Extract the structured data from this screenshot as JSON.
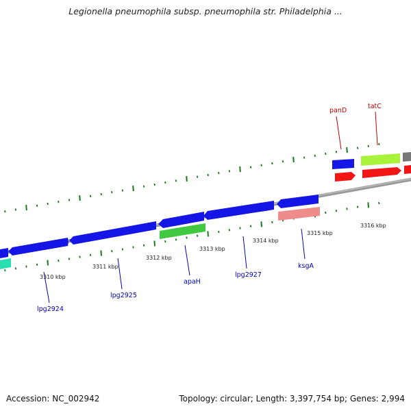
{
  "header": {
    "title": "Legionella pneumophila subsp. pneumophila str. Philadelphia ..."
  },
  "footer": {
    "accession": "Accession: NC_002942",
    "summary": "Topology: circular; Length: 3,397,754 bp; Genes: 2,994"
  },
  "colors": {
    "backbone": "#888888",
    "tick": "#1a7a1a",
    "blue": "#1010e8",
    "green": "#3ccc3c",
    "lime": "#a6f23a",
    "red": "#f01010",
    "pink": "#ee8888",
    "gray": "#707070",
    "teal": "#22ddaa",
    "label_red": "#c00000",
    "label_blue": "#0000bb"
  },
  "scale_labels": [
    "3310 kbp",
    "3311 kbp",
    "3312 kbp",
    "3313 kbp",
    "3314 kbp",
    "3315 kbp",
    "3316 kbp"
  ],
  "gene_labels_red": [
    "panD",
    "tatC"
  ],
  "gene_labels_blue": [
    "lpg2924",
    "lpg2925",
    "apaH",
    "lpg2927",
    "ksgA"
  ]
}
